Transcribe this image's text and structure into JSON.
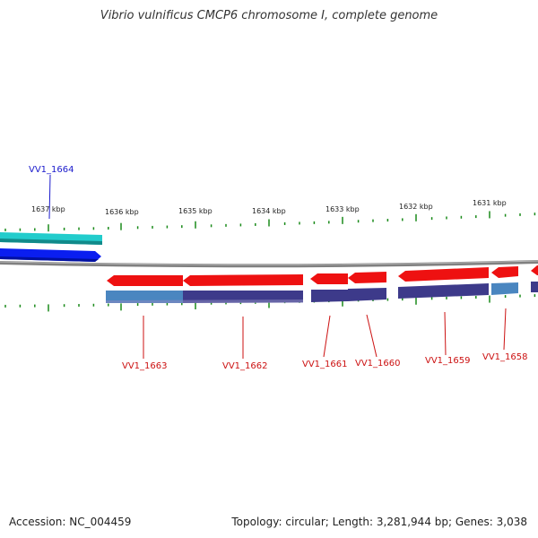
{
  "title": "Vibrio vulnificus CMCP6 chromosome I, complete genome",
  "accession_text": "Accession: NC_004459",
  "genome_info_text": "Topology: circular; Length: 3,281,944 bp; Genes: 3,038",
  "colors": {
    "gene_forward": "#0a1ef0",
    "cds_forward": "#22cccc",
    "gene_reverse": "#ee1111",
    "cds_reverse": "#3d3a8a",
    "cds_reverse_light": "#4a86c0",
    "backbone": "#808080",
    "tick": "#1a8a1a",
    "label_forward": "#1a1acc",
    "label_reverse": "#cc1111"
  },
  "ticks": [
    {
      "label": "1637 kbp"
    },
    {
      "label": "1636 kbp"
    },
    {
      "label": "1635 kbp"
    },
    {
      "label": "1634 kbp"
    },
    {
      "label": "1633 kbp"
    },
    {
      "label": "1632 kbp"
    },
    {
      "label": "1631 kbp"
    }
  ],
  "genes": [
    {
      "label": "VV1_1664",
      "strand": "forward"
    },
    {
      "label": "VV1_1663",
      "strand": "reverse"
    },
    {
      "label": "VV1_1662",
      "strand": "reverse"
    },
    {
      "label": "VV1_1661",
      "strand": "reverse"
    },
    {
      "label": "VV1_1660",
      "strand": "reverse"
    },
    {
      "label": "VV1_1659",
      "strand": "reverse"
    },
    {
      "label": "VV1_1658",
      "strand": "reverse"
    }
  ]
}
